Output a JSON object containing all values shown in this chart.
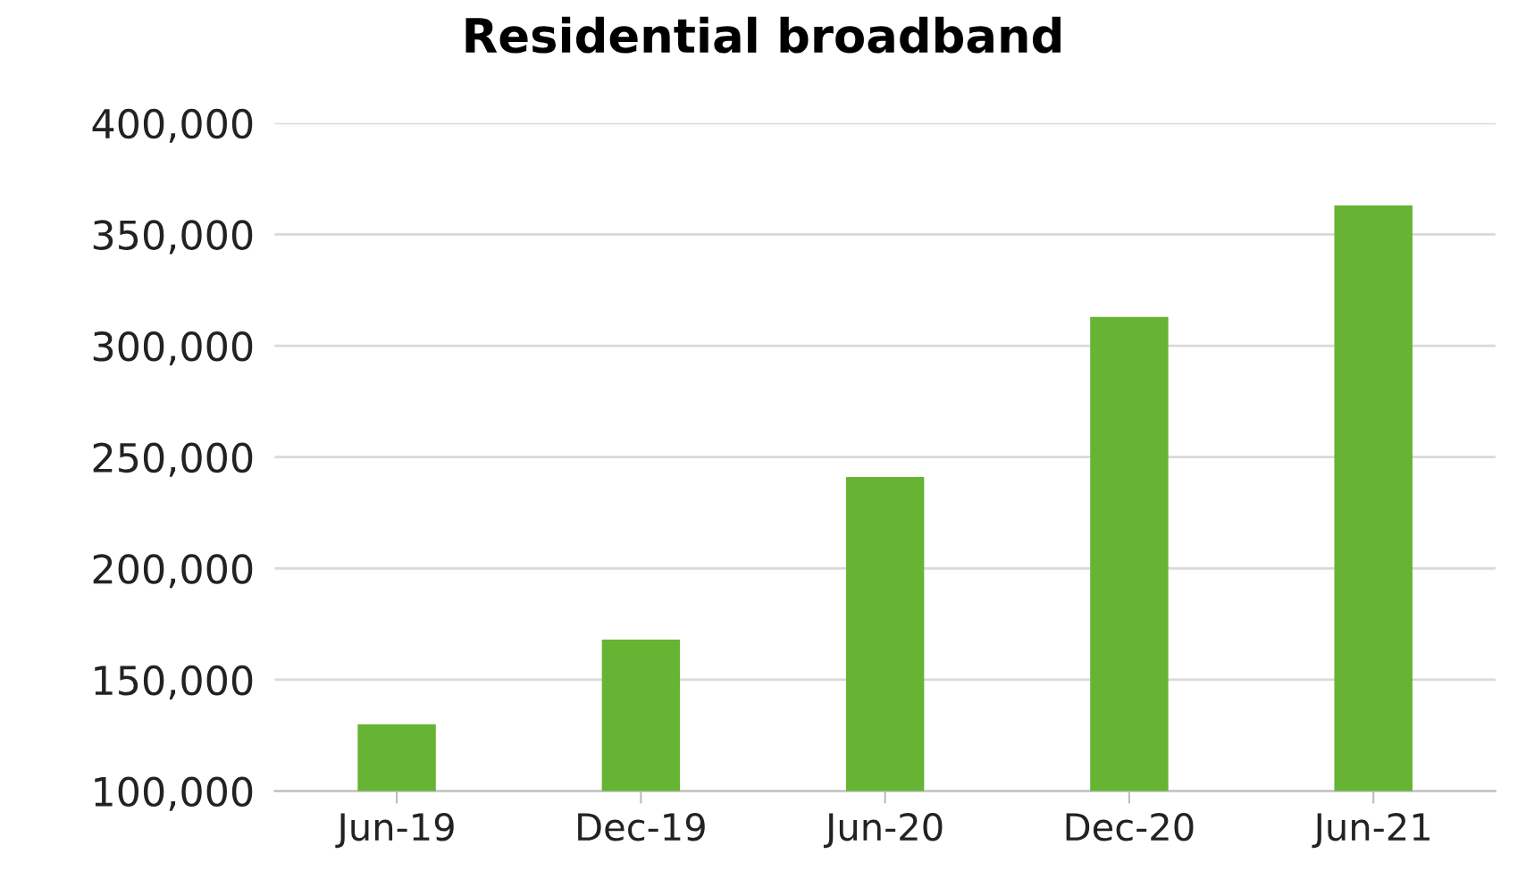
{
  "chart_data": {
    "type": "bar",
    "title": "Residential broadband",
    "categories": [
      "Jun-19",
      "Dec-19",
      "Jun-20",
      "Dec-20",
      "Jun-21"
    ],
    "values": [
      130000,
      168000,
      241000,
      313000,
      363000
    ],
    "color": "#67b434",
    "ylim": [
      100000,
      400000
    ],
    "yticks": [
      {
        "value": 100000,
        "label": "100,000"
      },
      {
        "value": 150000,
        "label": "150,000"
      },
      {
        "value": 200000,
        "label": "200,000"
      },
      {
        "value": 250000,
        "label": "250,000"
      },
      {
        "value": 300000,
        "label": "300,000"
      },
      {
        "value": 350000,
        "label": "350,000"
      },
      {
        "value": 400000,
        "label": "400,000"
      }
    ],
    "grid": "y"
  }
}
